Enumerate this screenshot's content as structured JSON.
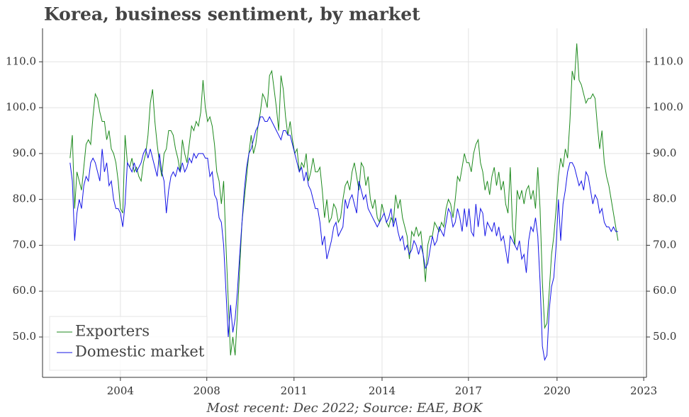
{
  "chart_data": {
    "type": "line",
    "title": "Korea, business sentiment, by market",
    "caption": "Most recent: Dec 2022; Source: EAE, BOK",
    "x": [
      2003.0,
      2003.083,
      2003.167,
      2003.25,
      2003.333,
      2003.417,
      2003.5,
      2003.583,
      2003.667,
      2003.75,
      2003.833,
      2003.917,
      2004.0,
      2004.083,
      2004.167,
      2004.25,
      2004.333,
      2004.417,
      2004.5,
      2004.583,
      2004.667,
      2004.75,
      2004.833,
      2004.917,
      2005.0,
      2005.083,
      2005.167,
      2005.25,
      2005.333,
      2005.417,
      2005.5,
      2005.583,
      2005.667,
      2005.75,
      2005.833,
      2005.917,
      2006.0,
      2006.083,
      2006.167,
      2006.25,
      2006.333,
      2006.417,
      2006.5,
      2006.583,
      2006.667,
      2006.75,
      2006.833,
      2006.917,
      2007.0,
      2007.083,
      2007.167,
      2007.25,
      2007.333,
      2007.417,
      2007.5,
      2007.583,
      2007.667,
      2007.75,
      2007.833,
      2007.917,
      2008.0,
      2008.083,
      2008.167,
      2008.25,
      2008.333,
      2008.417,
      2008.5,
      2008.583,
      2008.667,
      2008.75,
      2008.833,
      2008.917,
      2009.0,
      2009.083,
      2009.167,
      2009.25,
      2009.333,
      2009.417,
      2009.5,
      2009.583,
      2009.667,
      2009.75,
      2009.833,
      2009.917,
      2010.0,
      2010.083,
      2010.167,
      2010.25,
      2010.333,
      2010.417,
      2010.5,
      2010.583,
      2010.667,
      2010.75,
      2010.833,
      2010.917,
      2011.0,
      2011.083,
      2011.167,
      2011.25,
      2011.333,
      2011.417,
      2011.5,
      2011.583,
      2011.667,
      2011.75,
      2011.833,
      2011.917,
      2012.0,
      2012.083,
      2012.167,
      2012.25,
      2012.333,
      2012.417,
      2012.5,
      2012.583,
      2012.667,
      2012.75,
      2012.833,
      2012.917,
      2013.0,
      2013.083,
      2013.167,
      2013.25,
      2013.333,
      2013.417,
      2013.5,
      2013.583,
      2013.667,
      2013.75,
      2013.833,
      2013.917,
      2014.0,
      2014.083,
      2014.167,
      2014.25,
      2014.333,
      2014.417,
      2014.5,
      2014.583,
      2014.667,
      2014.75,
      2014.833,
      2014.917,
      2015.0,
      2015.083,
      2015.167,
      2015.25,
      2015.333,
      2015.417,
      2015.5,
      2015.583,
      2015.667,
      2015.75,
      2015.833,
      2015.917,
      2016.0,
      2016.083,
      2016.167,
      2016.25,
      2016.333,
      2016.417,
      2016.5,
      2016.583,
      2016.667,
      2016.75,
      2016.833,
      2016.917,
      2017.0,
      2017.083,
      2017.167,
      2017.25,
      2017.333,
      2017.417,
      2017.5,
      2017.583,
      2017.667,
      2017.75,
      2017.833,
      2017.917,
      2018.0,
      2018.083,
      2018.167,
      2018.25,
      2018.333,
      2018.417,
      2018.5,
      2018.583,
      2018.667,
      2018.75,
      2018.833,
      2018.917,
      2019.0,
      2019.083,
      2019.167,
      2019.25,
      2019.333,
      2019.417,
      2019.5,
      2019.583,
      2019.667,
      2019.75,
      2019.833,
      2019.917,
      2020.0,
      2020.083,
      2020.167,
      2020.25,
      2020.333,
      2020.417,
      2020.5,
      2020.583,
      2020.667,
      2020.75,
      2020.833,
      2020.917,
      2021.0,
      2021.083,
      2021.167,
      2021.25,
      2021.333,
      2021.417,
      2021.5,
      2021.583,
      2021.667,
      2021.75,
      2021.833,
      2021.917,
      2022.0,
      2022.083,
      2022.167,
      2022.25,
      2022.333,
      2022.417,
      2022.5,
      2022.583,
      2022.667,
      2022.75,
      2022.833,
      2022.917
    ],
    "series": [
      {
        "name": "Exporters",
        "color": "#1e8a1e",
        "values": [
          89,
          94,
          78,
          86,
          84,
          82,
          87,
          92,
          93,
          92,
          98,
          103,
          102,
          99,
          97,
          97,
          93,
          95,
          91,
          90,
          88,
          84,
          78,
          77,
          94,
          88,
          87,
          89,
          86,
          87,
          85,
          84,
          88,
          90,
          94,
          101,
          104,
          97,
          92,
          88,
          85,
          90,
          91,
          95,
          95,
          94,
          91,
          89,
          86,
          93,
          90,
          88,
          92,
          96,
          95,
          97,
          96,
          99,
          106,
          100,
          97,
          98,
          96,
          92,
          86,
          84,
          79,
          84,
          70,
          58,
          46,
          50,
          46,
          55,
          65,
          75,
          80,
          85,
          90,
          94,
          90,
          92,
          96,
          99,
          103,
          102,
          100,
          107,
          108,
          104,
          100,
          95,
          107,
          104,
          98,
          94,
          97,
          93,
          90,
          91,
          86,
          88,
          87,
          90,
          84,
          86,
          89,
          86,
          86,
          87,
          82,
          76,
          80,
          75,
          76,
          79,
          78,
          75,
          76,
          80,
          83,
          84,
          82,
          86,
          88,
          85,
          82,
          88,
          87,
          83,
          85,
          80,
          78,
          80,
          76,
          75,
          79,
          77,
          75,
          74,
          76,
          75,
          81,
          78,
          80,
          76,
          74,
          72,
          67,
          73,
          72,
          74,
          72,
          73,
          68,
          62,
          70,
          72,
          72,
          75,
          74,
          73,
          75,
          74,
          78,
          80,
          79,
          76,
          80,
          85,
          84,
          87,
          90,
          88,
          88,
          86,
          90,
          92,
          93,
          88,
          86,
          82,
          84,
          81,
          85,
          87,
          83,
          86,
          82,
          84,
          79,
          77,
          87,
          74,
          70,
          82,
          80,
          82,
          79,
          82,
          83,
          80,
          82,
          78,
          87,
          78,
          62,
          52,
          53,
          60,
          68,
          72,
          78,
          85,
          89,
          87,
          91,
          89,
          97,
          108,
          106,
          114,
          106,
          105,
          103,
          101,
          102,
          102,
          103,
          102,
          96,
          91,
          95,
          88,
          85,
          83,
          80,
          77,
          74,
          71
        ]
      },
      {
        "name": "Domestic market",
        "color": "#1414e6",
        "values": [
          88,
          84,
          71,
          77,
          80,
          78,
          83,
          85,
          84,
          88,
          89,
          88,
          86,
          84,
          91,
          86,
          88,
          83,
          84,
          80,
          78,
          78,
          77,
          74,
          79,
          88,
          87,
          86,
          88,
          86,
          87,
          88,
          90,
          91,
          89,
          91,
          89,
          87,
          85,
          90,
          86,
          84,
          77,
          82,
          85,
          86,
          85,
          87,
          86,
          88,
          86,
          87,
          89,
          88,
          90,
          89,
          90,
          90,
          90,
          89,
          89,
          85,
          86,
          81,
          80,
          76,
          75,
          70,
          60,
          50,
          57,
          51,
          54,
          60,
          68,
          75,
          82,
          87,
          90,
          91,
          93,
          95,
          96,
          98,
          98,
          97,
          97,
          98,
          97,
          96,
          95,
          94,
          93,
          95,
          95,
          94,
          94,
          92,
          90,
          88,
          86,
          87,
          84,
          86,
          83,
          82,
          80,
          78,
          78,
          75,
          70,
          72,
          67,
          69,
          71,
          74,
          75,
          72,
          73,
          74,
          80,
          78,
          80,
          81,
          79,
          77,
          84,
          82,
          80,
          81,
          78,
          77,
          76,
          75,
          74,
          75,
          76,
          77,
          75,
          76,
          78,
          74,
          76,
          73,
          71,
          72,
          69,
          70,
          68,
          69,
          71,
          70,
          68,
          70,
          68,
          65,
          66,
          69,
          72,
          70,
          71,
          74,
          73,
          72,
          75,
          78,
          77,
          74,
          75,
          78,
          76,
          73,
          78,
          74,
          78,
          73,
          72,
          79,
          74,
          78,
          77,
          72,
          75,
          74,
          73,
          75,
          72,
          74,
          71,
          72,
          69,
          66,
          72,
          71,
          70,
          69,
          71,
          67,
          68,
          64,
          71,
          74,
          73,
          76,
          72,
          62,
          48,
          45,
          46,
          56,
          61,
          63,
          70,
          80,
          71,
          79,
          82,
          86,
          88,
          88,
          87,
          85,
          83,
          84,
          82,
          86,
          85,
          82,
          79,
          81,
          80,
          77,
          78,
          75,
          74,
          74,
          73,
          74,
          73,
          73
        ]
      }
    ],
    "xlim": [
      2002.0,
      2023.95
    ],
    "xticks": [
      {
        "value": 2004.83,
        "label": "2004"
      },
      {
        "value": 2007.97,
        "label": "2008"
      },
      {
        "value": 2011.14,
        "label": "2011"
      },
      {
        "value": 2014.34,
        "label": "2014"
      },
      {
        "value": 2017.48,
        "label": "2017"
      },
      {
        "value": 2020.7,
        "label": "2020"
      },
      {
        "value": 2023.85,
        "label": "2023"
      }
    ],
    "ylim": [
      41.2,
      117.3
    ],
    "yticks": [
      {
        "value": 50,
        "label": "50.0"
      },
      {
        "value": 60,
        "label": "60.0"
      },
      {
        "value": 70,
        "label": "70.0"
      },
      {
        "value": 80,
        "label": "80.0"
      },
      {
        "value": 90,
        "label": "90.0"
      },
      {
        "value": 100,
        "label": "100.0"
      },
      {
        "value": 110,
        "label": "110.0"
      }
    ],
    "grid": true,
    "legend": "lower left"
  }
}
